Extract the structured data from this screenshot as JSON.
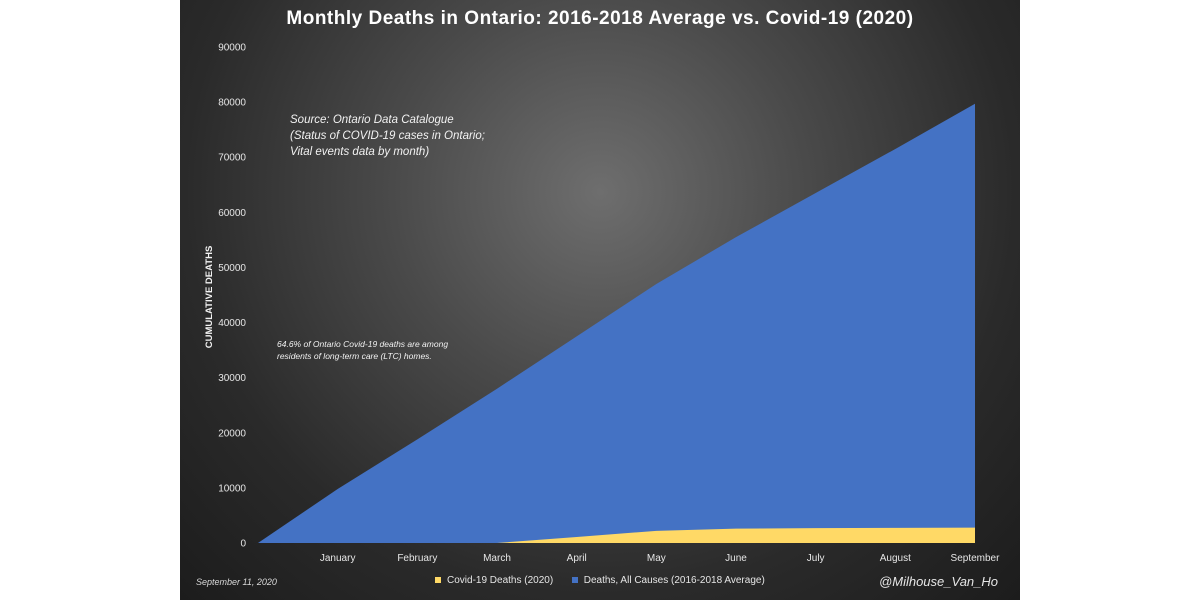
{
  "chart_data": {
    "type": "area",
    "title": "Monthly Deaths in Ontario: 2016-2018 Average vs. Covid-19 (2020)",
    "xlabel": "",
    "ylabel": "CUMULATIVE DEATHS",
    "ylim": [
      0,
      90000
    ],
    "yticks": [
      "0",
      "10000",
      "20000",
      "30000",
      "40000",
      "50000",
      "60000",
      "70000",
      "80000",
      "90000"
    ],
    "categories": [
      "",
      "January",
      "February",
      "March",
      "April",
      "May",
      "June",
      "July",
      "August",
      "September"
    ],
    "series": [
      {
        "name": "Deaths, All Causes (2016-2018 Average)",
        "color": "#4472c4",
        "values": [
          0,
          9800,
          18800,
          28000,
          37500,
          47000,
          55500,
          63500,
          71500,
          79700
        ]
      },
      {
        "name": "Covid-19 Deaths (2020)",
        "color": "#ffd966",
        "values": [
          0,
          0,
          0,
          0,
          1100,
          2200,
          2600,
          2700,
          2750,
          2800
        ]
      }
    ],
    "legend_position": "bottom",
    "grid": false
  },
  "annotations": {
    "source_lines": [
      "Source: Ontario Data Catalogue",
      "(Status of COVID-19 cases in Ontario;",
      "Vital events data by month)"
    ],
    "ltc_lines": [
      "64.6% of Ontario Covid-19 deaths are among",
      "residents of long-term care (LTC) homes."
    ],
    "date": "September 11, 2020",
    "handle": "@Milhouse_Van_Ho"
  }
}
